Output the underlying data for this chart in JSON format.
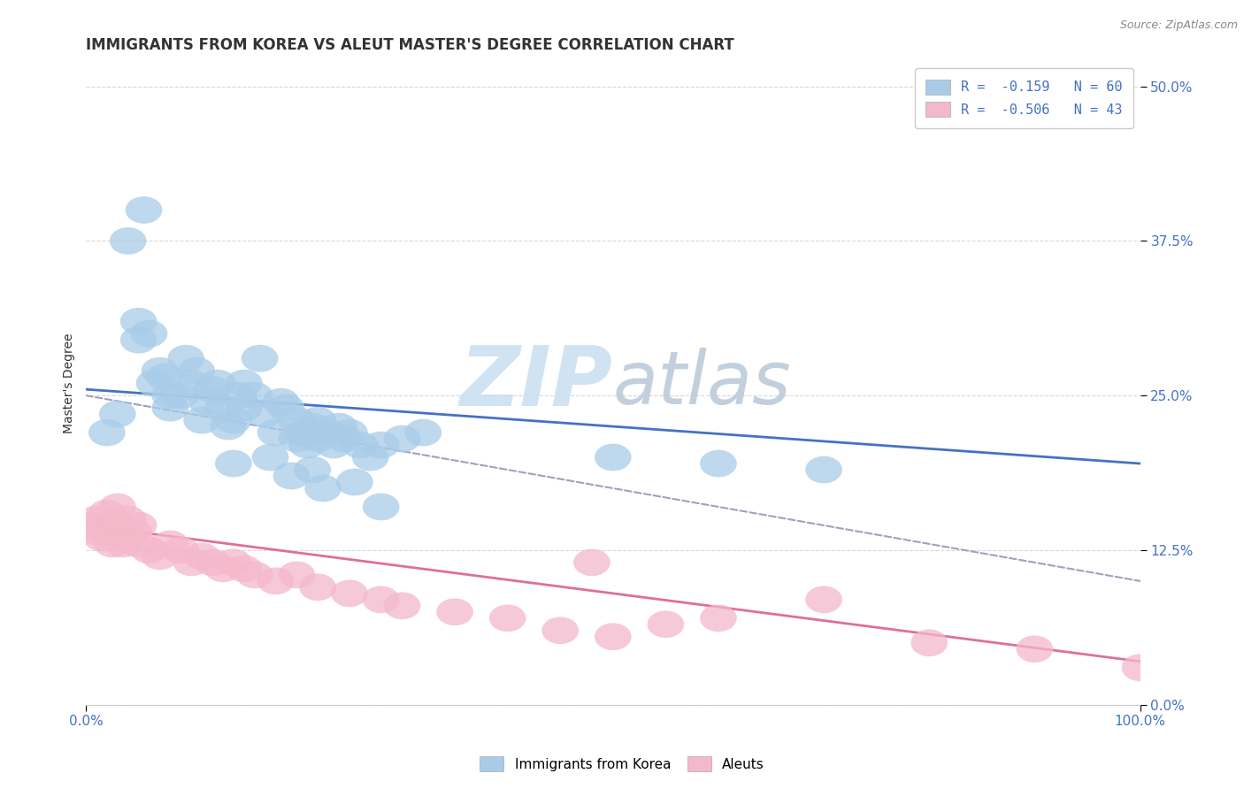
{
  "title": "IMMIGRANTS FROM KOREA VS ALEUT MASTER'S DEGREE CORRELATION CHART",
  "source_text": "Source: ZipAtlas.com",
  "ylabel": "Master's Degree",
  "xlim": [
    0,
    100
  ],
  "ylim": [
    0,
    52
  ],
  "ytick_labels": [
    "0.0%",
    "12.5%",
    "25.0%",
    "37.5%",
    "50.0%"
  ],
  "ytick_values": [
    0,
    12.5,
    25.0,
    37.5,
    50.0
  ],
  "xtick_labels": [
    "0.0%",
    "100.0%"
  ],
  "xtick_values": [
    0,
    100
  ],
  "legend_entry1": "R =  -0.159   N = 60",
  "legend_entry2": "R =  -0.506   N = 43",
  "blue_color": "#a8cce8",
  "pink_color": "#f4b8cb",
  "blue_line_color": "#4472c4",
  "pink_line_color": "#e07090",
  "dashed_line_color": "#a0a0c0",
  "blue_scatter_x": [
    2.0,
    5.0,
    5.0,
    6.5,
    7.0,
    7.5,
    8.0,
    8.0,
    9.0,
    10.0,
    11.0,
    11.5,
    12.0,
    12.5,
    13.0,
    13.5,
    14.0,
    14.5,
    15.0,
    15.0,
    16.0,
    17.0,
    18.0,
    18.5,
    19.0,
    20.0,
    20.0,
    20.5,
    21.0,
    21.0,
    21.5,
    22.0,
    22.0,
    23.0,
    23.5,
    24.0,
    24.5,
    25.0,
    26.0,
    27.0,
    28.0,
    30.0,
    32.0,
    50.0,
    60.0,
    70.0,
    3.0,
    4.0,
    5.5,
    6.0,
    9.5,
    10.5,
    14.0,
    16.5,
    17.5,
    19.5,
    21.5,
    22.5,
    25.5,
    28.0
  ],
  "blue_scatter_y": [
    22.0,
    29.5,
    31.0,
    26.0,
    27.0,
    26.5,
    25.0,
    24.0,
    25.0,
    26.0,
    23.0,
    24.5,
    25.5,
    26.0,
    24.0,
    22.5,
    23.0,
    25.0,
    24.0,
    26.0,
    25.0,
    23.5,
    22.0,
    24.5,
    24.0,
    23.0,
    21.5,
    22.0,
    22.0,
    21.0,
    22.5,
    23.0,
    21.5,
    22.0,
    21.0,
    22.5,
    21.5,
    22.0,
    21.0,
    20.0,
    21.0,
    21.5,
    22.0,
    20.0,
    19.5,
    19.0,
    23.5,
    37.5,
    40.0,
    30.0,
    28.0,
    27.0,
    19.5,
    28.0,
    20.0,
    18.5,
    19.0,
    17.5,
    18.0,
    16.0
  ],
  "pink_scatter_x": [
    0.5,
    1.0,
    1.5,
    2.0,
    2.5,
    3.0,
    3.5,
    4.0,
    4.5,
    5.0,
    6.0,
    7.0,
    8.0,
    9.0,
    10.0,
    11.0,
    12.0,
    13.0,
    14.0,
    15.0,
    16.0,
    18.0,
    20.0,
    22.0,
    25.0,
    28.0,
    30.0,
    35.0,
    40.0,
    45.0,
    50.0,
    55.0,
    60.0,
    70.0,
    80.0,
    90.0,
    100.0,
    1.0,
    2.0,
    3.0,
    4.0,
    5.0,
    48.0
  ],
  "pink_scatter_y": [
    14.5,
    14.0,
    13.5,
    14.0,
    13.0,
    14.5,
    13.0,
    13.5,
    14.0,
    13.0,
    12.5,
    12.0,
    13.0,
    12.5,
    11.5,
    12.0,
    11.5,
    11.0,
    11.5,
    11.0,
    10.5,
    10.0,
    10.5,
    9.5,
    9.0,
    8.5,
    8.0,
    7.5,
    7.0,
    6.0,
    5.5,
    6.5,
    7.0,
    8.5,
    5.0,
    4.5,
    3.0,
    15.0,
    15.5,
    16.0,
    15.0,
    14.5,
    11.5
  ],
  "blue_line_x": [
    0,
    100
  ],
  "blue_line_y": [
    25.5,
    19.5
  ],
  "pink_line_x": [
    0,
    100
  ],
  "pink_line_y": [
    14.5,
    3.5
  ],
  "dashed_line_x": [
    0,
    100
  ],
  "dashed_line_y": [
    25.0,
    10.0
  ],
  "background_color": "#ffffff",
  "grid_color": "#d8d8d8",
  "title_fontsize": 12,
  "axis_label_fontsize": 10,
  "tick_fontsize": 11,
  "legend_fontsize": 11,
  "watermark_color": "#c8dff0",
  "watermark_zip": "ZIP",
  "watermark_atlas": "atlas"
}
